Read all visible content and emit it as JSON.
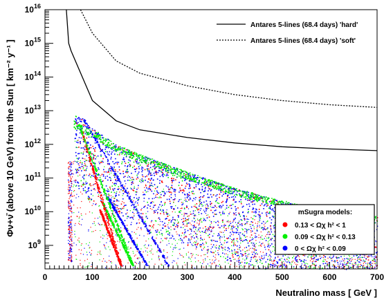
{
  "chart_data": {
    "type": "scatter",
    "xlabel": "Neutralino mass  [ GeV ]",
    "ylabel": "Φν+ν̄ (above 10 GeV) from the Sun  [ km⁻² y⁻¹ ]",
    "xlim": [
      0,
      700
    ],
    "ylim": [
      200000000.0,
      1e+16
    ],
    "yscale": "log",
    "x_ticks": [
      0,
      100,
      200,
      300,
      400,
      500,
      600,
      700
    ],
    "y_ticks": [
      {
        "value": 1000000000.0,
        "base": "10",
        "exp": "9"
      },
      {
        "value": 10000000000.0,
        "base": "10",
        "exp": "10"
      },
      {
        "value": 100000000000.0,
        "base": "10",
        "exp": "11"
      },
      {
        "value": 1000000000000.0,
        "base": "10",
        "exp": "12"
      },
      {
        "value": 10000000000000.0,
        "base": "10",
        "exp": "13"
      },
      {
        "value": 100000000000000.0,
        "base": "10",
        "exp": "14"
      },
      {
        "value": 1000000000000000.0,
        "base": "10",
        "exp": "15"
      },
      {
        "value": 1e+16,
        "base": "10",
        "exp": "16"
      }
    ],
    "limit_lines": [
      {
        "name": "Antares 5-lines (68.4 days) 'hard'",
        "style": "solid",
        "x": [
          45,
          50,
          55,
          100,
          150,
          200,
          300,
          400,
          500,
          600,
          700
        ],
        "y": [
          1e+16,
          1000000000000000.0,
          600000000000000.0,
          20000000000000.0,
          5000000000000.0,
          2700000000000.0,
          1600000000000.0,
          1100000000000.0,
          850000000000.0,
          730000000000.0,
          650000000000.0
        ]
      },
      {
        "name": "Antares 5-lines (68.4 days) 'soft'",
        "style": "dotted",
        "x": [
          75,
          100,
          150,
          200,
          300,
          400,
          500,
          600,
          700
        ],
        "y": [
          1e+16,
          2000000000000000.0,
          300000000000000.0,
          130000000000000.0,
          55000000000000.0,
          30000000000000.0,
          20000000000000.0,
          15000000000000.0,
          12500000000000.0
        ]
      }
    ],
    "series": [
      {
        "name": "0.13 < Ωχ h² < 1",
        "color": "#ff0000"
      },
      {
        "name": "0.09 < Ωχ h² < 0.13",
        "color": "#00ee00"
      },
      {
        "name": "0 < Ωχ h² < 0.09",
        "color": "#0000ff"
      }
    ],
    "model_region": {
      "upper_envelope": [
        [
          50,
          400000000000.0
        ],
        [
          60,
          6000000000000.0
        ],
        [
          65,
          8000000000000.0
        ],
        [
          80,
          5000000000000.0
        ],
        [
          100,
          3000000000000.0
        ],
        [
          150,
          1000000000000.0
        ],
        [
          200,
          500000000000.0
        ],
        [
          300,
          150000000000.0
        ],
        [
          400,
          50000000000.0
        ],
        [
          500,
          20000000000.0
        ],
        [
          600,
          10000000000.0
        ],
        [
          700,
          7000000000.0
        ]
      ],
      "green_band": [
        [
          60,
          4000000000000.0
        ],
        [
          100,
          2000000000000.0
        ],
        [
          150,
          800000000000.0
        ],
        [
          200,
          400000000000.0
        ],
        [
          300,
          120000000000.0
        ],
        [
          400,
          40000000000.0
        ],
        [
          500,
          17000000000.0
        ],
        [
          600,
          9000000000.0
        ],
        [
          700,
          6000000000.0
        ]
      ]
    },
    "legend_title": "mSugra models:",
    "legend_position": "bottom-right",
    "lines_legend_position": "top-right",
    "grid": false
  }
}
